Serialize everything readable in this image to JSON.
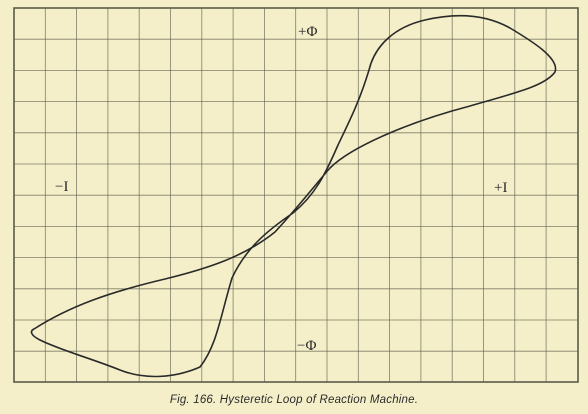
{
  "labels": {
    "plus_phi": "+Φ",
    "minus_phi": "−Φ",
    "minus_i": "−I",
    "plus_i": "+I"
  },
  "caption": "Fig. 166.  Hysteretic Loop of Reaction Machine.",
  "colors": {
    "paper": "#f4efc9",
    "grid": "#5a5a4a",
    "curve": "#2a2a2a"
  }
}
